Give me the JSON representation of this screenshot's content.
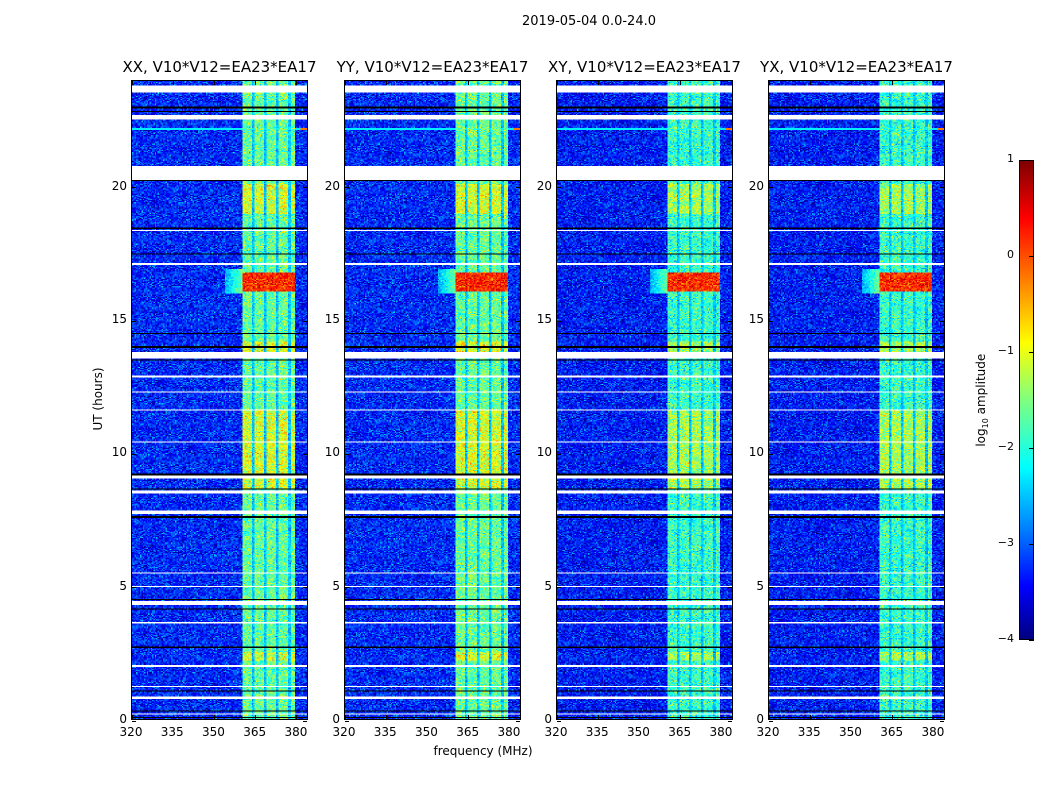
{
  "chart_data": {
    "type": "heatmap",
    "suptitle": "2019-05-04 0.0-24.0",
    "panels": [
      {
        "title": "XX, V10*V12=EA23*EA17"
      },
      {
        "title": "YY, V10*V12=EA23*EA17"
      },
      {
        "title": "XY, V10*V12=EA23*EA17"
      },
      {
        "title": "YX, V10*V12=EA23*EA17"
      }
    ],
    "xlabel": "frequency (MHz)",
    "ylabel": "UT (hours)",
    "xlim": [
      320,
      384.4
    ],
    "ylim": [
      0,
      24
    ],
    "xticks": [
      "320",
      "335",
      "350",
      "365",
      "380"
    ],
    "xtick_values": [
      320,
      335,
      350,
      365,
      380
    ],
    "yticks": [
      "0",
      "5",
      "10",
      "15",
      "20"
    ],
    "ytick_values": [
      0,
      5,
      10,
      15,
      20
    ],
    "colorbar": {
      "label": "log",
      "label_sub": "10",
      "label_rest": " amplitude",
      "ticks": [
        "1",
        "0",
        "−1",
        "−2",
        "−3",
        "−4"
      ],
      "tick_values": [
        1,
        0,
        -1,
        -2,
        -3,
        -4
      ],
      "range": [
        -4,
        1
      ],
      "colormap": "jet"
    },
    "background_level": -3.2,
    "band_level": -1.6,
    "active_band_mhz": [
      360.5,
      380
    ],
    "band_gaps_mhz": [
      364.5,
      369,
      373.5,
      378
    ],
    "bright_intervals_hours": [
      [
        2.2,
        2.5
      ],
      [
        8.7,
        11.6
      ],
      [
        19.0,
        20.1
      ],
      [
        13.7,
        14.2
      ]
    ],
    "rfi_burst": {
      "hours": [
        16.1,
        16.8
      ],
      "level": 0.2,
      "glow_mhz": [
        354,
        360.5
      ]
    },
    "rfi_line": {
      "hour": 22.2,
      "level": -2.2
    },
    "flagged_hours": [
      [
        23.55,
        23.85
      ],
      [
        22.55,
        22.7
      ],
      [
        20.3,
        20.8
      ],
      [
        18.35,
        18.4
      ],
      [
        17.1,
        17.15
      ],
      [
        13.55,
        13.8
      ],
      [
        12.85,
        12.9
      ],
      [
        12.3,
        12.33
      ],
      [
        11.6,
        11.63
      ],
      [
        10.4,
        10.45
      ],
      [
        9.05,
        9.15
      ],
      [
        8.5,
        8.6
      ],
      [
        7.7,
        7.85
      ],
      [
        6.3,
        6.33
      ],
      [
        5.5,
        5.53
      ],
      [
        4.95,
        4.98
      ],
      [
        4.3,
        4.45
      ],
      [
        3.6,
        3.65
      ],
      [
        3.3,
        3.33
      ],
      [
        1.95,
        2.05
      ],
      [
        1.2,
        1.25
      ],
      [
        0.75,
        0.85
      ],
      [
        0.15,
        0.2
      ]
    ],
    "dark_lines_hours": [
      23.0,
      22.85,
      20.25,
      18.45,
      17.5,
      14.5,
      14.0,
      13.5,
      9.2,
      8.65,
      7.6,
      4.15,
      4.5,
      2.7,
      1.05,
      0.3,
      0.05
    ]
  }
}
